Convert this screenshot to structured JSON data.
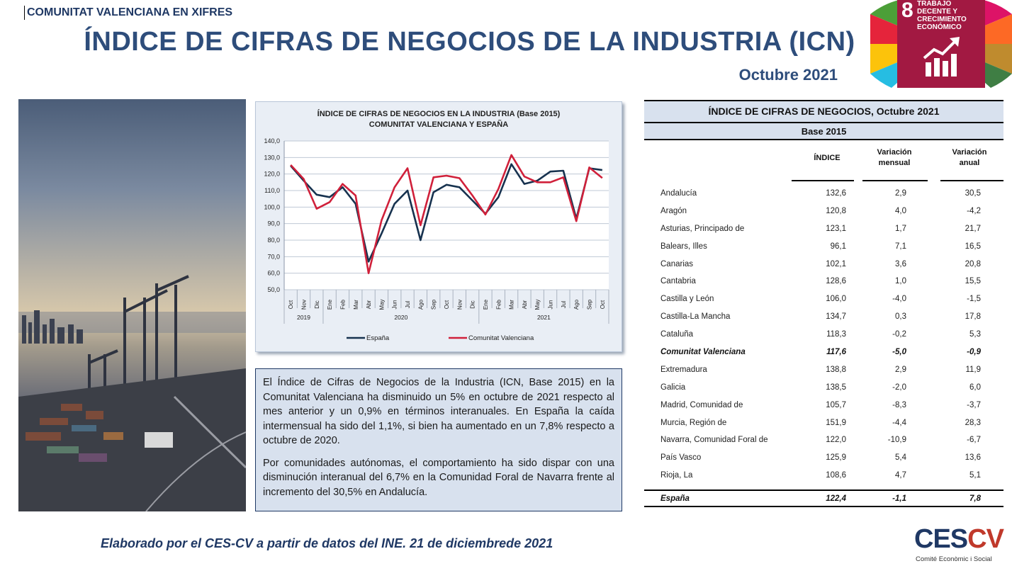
{
  "header": {
    "tag": "COMUNITAT VALENCIANA EN XIFRES",
    "title": "ÍNDICE DE CIFRAS DE NEGOCIOS DE LA INDUSTRIA (ICN)",
    "period": "Octubre 2021"
  },
  "sdg": {
    "number": "8",
    "label": "TRABAJO DECENTE Y CRECIMIENTO ECONÓMICO",
    "color": "#a21942"
  },
  "chart_data": {
    "type": "line",
    "title": "ÍNDICE DE CIFRAS DE NEGOCIOS EN LA INDUSTRIA (Base 2015)",
    "subtitle": "COMUNITAT VALENCIANA Y ESPAÑA",
    "ylim": [
      50,
      140
    ],
    "yticks": [
      "50,0",
      "60,0",
      "70,0",
      "80,0",
      "90,0",
      "100,0",
      "110,0",
      "120,0",
      "130,0",
      "140,0"
    ],
    "categories": [
      "Oct",
      "Nov",
      "Dic",
      "Ene",
      "Feb",
      "Mar",
      "Abr",
      "May",
      "Jun",
      "Jul",
      "Ago",
      "Sep",
      "Oct",
      "Nov",
      "Dic",
      "Ene",
      "Feb",
      "Mar",
      "Abr",
      "May",
      "Jun",
      "Jul",
      "Ago",
      "Sep",
      "Oct"
    ],
    "years": [
      {
        "label": "2019",
        "from": 0,
        "to": 2
      },
      {
        "label": "2020",
        "from": 3,
        "to": 14
      },
      {
        "label": "2021",
        "from": 15,
        "to": 24
      }
    ],
    "series": [
      {
        "name": "España",
        "color": "#17324f",
        "values": [
          125,
          116,
          107.5,
          106,
          112,
          102,
          67,
          84,
          102,
          110,
          80,
          109,
          113.5,
          112,
          104,
          96,
          106,
          126,
          114,
          116,
          121.5,
          122,
          93,
          123.5,
          122.4
        ]
      },
      {
        "name": "Comunitat Valenciana",
        "color": "#d0203a",
        "values": [
          125.5,
          117,
          99,
          103,
          114,
          107,
          60,
          92,
          112,
          123.5,
          89,
          118,
          119,
          117.5,
          107,
          95.5,
          111,
          131.5,
          118.5,
          115,
          115,
          118,
          91.5,
          124,
          117.6
        ]
      }
    ],
    "legend": "bottom"
  },
  "summary": {
    "p1": "El Índice de Cifras de Negocios de la Industria (ICN, Base 2015) en la Comunitat Valenciana ha disminuido un 5% en octubre de 2021 respecto al mes anterior y un 0,9% en términos interanuales. En España la caída intermensual ha sido del 1,1%, si bien ha aumentado en un 7,8% respecto a octubre de 2020.",
    "p2": "Por comunidades autónomas, el comportamiento ha sido dispar con una disminución interanual del 6,7% en la Comunidad Foral de Navarra frente al incremento del 30,5% en Andalucía."
  },
  "table": {
    "title": "ÍNDICE DE CIFRAS DE NEGOCIOS, Octubre 2021",
    "subtitle": "Base 2015",
    "col_index": "ÍNDICE",
    "col_monthly": "Variación mensual",
    "col_annual": "Variación anual",
    "rows": [
      {
        "name": "Andalucía",
        "index": "132,6",
        "monthly": "2,9",
        "annual": "30,5"
      },
      {
        "name": "Aragón",
        "index": "120,8",
        "monthly": "4,0",
        "annual": "-4,2"
      },
      {
        "name": "Asturias, Principado de",
        "index": "123,1",
        "monthly": "1,7",
        "annual": "21,7"
      },
      {
        "name": "Balears, Illes",
        "index": "96,1",
        "monthly": "7,1",
        "annual": "16,5"
      },
      {
        "name": "Canarias",
        "index": "102,1",
        "monthly": "3,6",
        "annual": "20,8"
      },
      {
        "name": "Cantabria",
        "index": "128,6",
        "monthly": "1,0",
        "annual": "15,5"
      },
      {
        "name": "Castilla y León",
        "index": "106,0",
        "monthly": "-4,0",
        "annual": "-1,5"
      },
      {
        "name": "Castilla-La Mancha",
        "index": "134,7",
        "monthly": "0,3",
        "annual": "17,8"
      },
      {
        "name": "Cataluña",
        "index": "118,3",
        "monthly": "-0,2",
        "annual": "5,3"
      },
      {
        "name": "Comunitat Valenciana",
        "index": "117,6",
        "monthly": "-5,0",
        "annual": "-0,9"
      },
      {
        "name": "Extremadura",
        "index": "138,8",
        "monthly": "2,9",
        "annual": "11,9"
      },
      {
        "name": "Galicia",
        "index": "138,5",
        "monthly": "-2,0",
        "annual": "6,0"
      },
      {
        "name": "Madrid, Comunidad de",
        "index": "105,7",
        "monthly": "-8,3",
        "annual": "-3,7"
      },
      {
        "name": "Murcia, Región de",
        "index": "151,9",
        "monthly": "-4,4",
        "annual": "28,3"
      },
      {
        "name": "Navarra, Comunidad Foral de",
        "index": "122,0",
        "monthly": "-10,9",
        "annual": "-6,7"
      },
      {
        "name": "País Vasco",
        "index": "125,9",
        "monthly": "5,4",
        "annual": "13,6"
      },
      {
        "name": "Rioja, La",
        "index": "108,6",
        "monthly": "4,7",
        "annual": "5,1"
      }
    ],
    "total": {
      "name": "España",
      "index": "122,4",
      "monthly": "-1,1",
      "annual": "7,8"
    }
  },
  "footer": {
    "source": "Elaborado por el CES-CV a partir de datos del INE. 21 de diciembrede 2021"
  },
  "logo": {
    "text_a": "CES",
    "text_b": "CV",
    "caption": "Comité Econòmic i Social"
  }
}
